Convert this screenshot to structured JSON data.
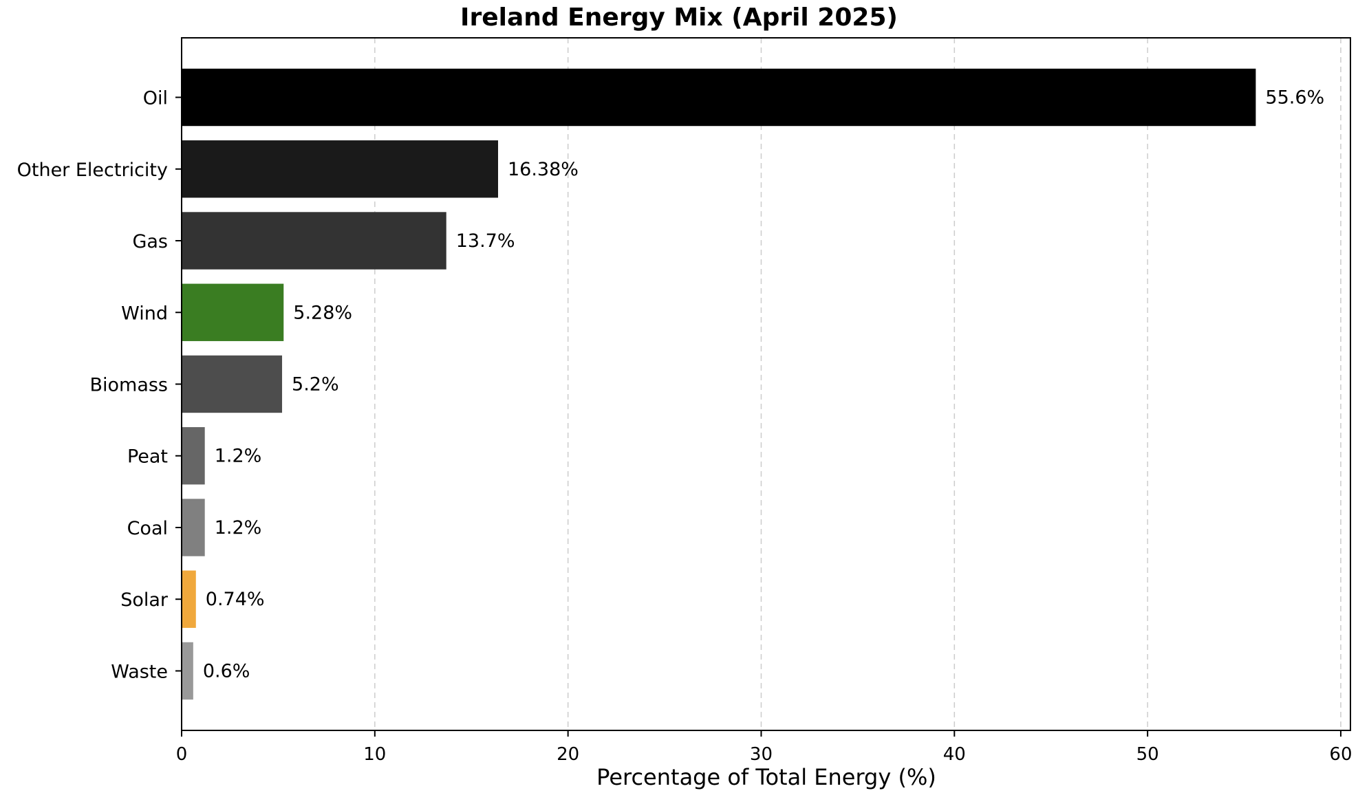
{
  "chart_data": {
    "type": "bar",
    "orientation": "horizontal",
    "title": "Ireland Energy Mix (April 2025)",
    "xlabel": "Percentage of Total Energy (%)",
    "ylabel": "",
    "xlim": [
      0,
      60.5
    ],
    "xticks": [
      "0",
      "10",
      "20",
      "30",
      "40",
      "50",
      "60"
    ],
    "grid": "x-dashed",
    "categories": [
      "Oil",
      "Other Electricity",
      "Gas",
      "Wind",
      "Biomass",
      "Peat",
      "Coal",
      "Solar",
      "Waste"
    ],
    "values": [
      55.6,
      16.38,
      13.7,
      5.28,
      5.2,
      1.2,
      1.2,
      0.74,
      0.6
    ],
    "data_labels": [
      "55.6%",
      "16.38%",
      "13.7%",
      "5.28%",
      "5.2%",
      "1.2%",
      "1.2%",
      "0.74%",
      "0.6%"
    ],
    "colors": [
      "#000000",
      "#1a1a1a",
      "#333333",
      "#3a7d22",
      "#4d4d4d",
      "#666666",
      "#808080",
      "#f0a83c",
      "#999999"
    ]
  }
}
